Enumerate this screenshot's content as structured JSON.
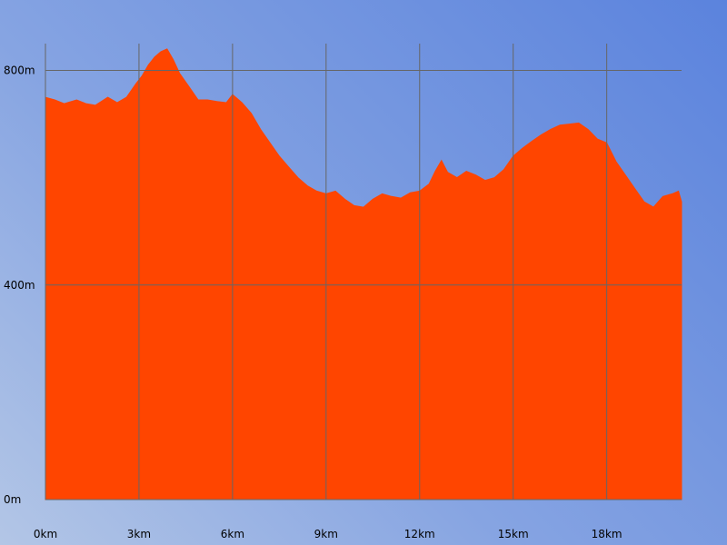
{
  "chart_data": {
    "type": "area",
    "title": "",
    "xlabel": "",
    "ylabel": "",
    "x_unit": "km",
    "y_unit": "m",
    "xlim": [
      0,
      20.4
    ],
    "ylim": [
      0,
      850
    ],
    "x_ticks": [
      0,
      3,
      6,
      9,
      12,
      15,
      18
    ],
    "x_tick_labels": [
      "0km",
      "3km",
      "6km",
      "9km",
      "12km",
      "15km",
      "18km"
    ],
    "y_ticks": [
      0,
      400,
      800
    ],
    "y_tick_labels": [
      "0m",
      "400m",
      "800m"
    ],
    "grid": true,
    "colors": {
      "fill": "#ff4500",
      "grid": "#666666"
    },
    "series": [
      {
        "x": [
          0,
          0.3,
          0.6,
          1.0,
          1.3,
          1.6,
          2.0,
          2.3,
          2.6,
          2.9,
          3.1,
          3.3,
          3.5,
          3.7,
          3.9,
          4.1,
          4.3,
          4.6,
          4.9,
          5.2,
          5.5,
          5.8,
          6.0,
          6.3,
          6.6,
          6.9,
          7.2,
          7.5,
          7.8,
          8.1,
          8.4,
          8.7,
          9.0,
          9.3,
          9.6,
          9.9,
          10.2,
          10.5,
          10.8,
          11.1,
          11.4,
          11.7,
          12.0,
          12.3,
          12.5,
          12.7,
          12.9,
          13.2,
          13.5,
          13.8,
          14.1,
          14.4,
          14.7,
          15.0,
          15.3,
          15.6,
          15.9,
          16.2,
          16.5,
          16.8,
          17.1,
          17.4,
          17.7,
          18.0,
          18.3,
          18.6,
          18.9,
          19.2,
          19.5,
          19.8,
          20.1,
          20.3,
          20.4
        ],
        "y": [
          750,
          745,
          738,
          745,
          738,
          735,
          750,
          740,
          750,
          775,
          790,
          810,
          825,
          835,
          840,
          820,
          795,
          770,
          745,
          745,
          742,
          740,
          755,
          740,
          720,
          690,
          665,
          640,
          620,
          600,
          585,
          575,
          570,
          575,
          560,
          548,
          545,
          560,
          570,
          565,
          562,
          572,
          575,
          588,
          612,
          632,
          610,
          600,
          612,
          605,
          595,
          600,
          615,
          640,
          655,
          668,
          680,
          690,
          698,
          700,
          702,
          690,
          672,
          665,
          630,
          605,
          580,
          555,
          545,
          565,
          570,
          575,
          555
        ]
      }
    ]
  }
}
